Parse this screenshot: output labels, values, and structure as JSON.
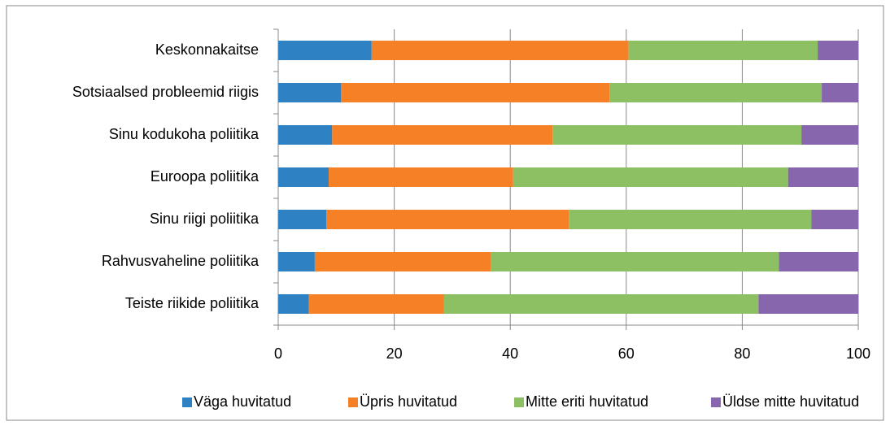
{
  "chart_data": {
    "type": "stacked-barh",
    "categories": [
      "Keskonnakaitse",
      "Sotsiaalsed probleemid riigis",
      "Sinu kodukoha poliitika",
      "Euroopa poliitika",
      "Sinu riigi poliitika",
      "Rahvusvaheline poliitika",
      "Teiste riikide poliitika"
    ],
    "series": [
      {
        "name": "Väga huvitatud",
        "color": "#2e82c4",
        "values": [
          16.1,
          10.8,
          9.3,
          8.7,
          8.3,
          6.3,
          5.3
        ]
      },
      {
        "name": "Üpris huvitatud",
        "color": "#f58025",
        "values": [
          44.3,
          46.3,
          38.0,
          31.8,
          41.8,
          30.4,
          23.3
        ]
      },
      {
        "name": "Mitte eriti huvitatud",
        "color": "#8cc063",
        "values": [
          32.6,
          36.6,
          42.9,
          47.4,
          41.8,
          49.6,
          54.2
        ]
      },
      {
        "name": "Üldse mitte huvitatud",
        "color": "#8766ad",
        "values": [
          7.0,
          6.3,
          9.8,
          12.1,
          8.1,
          13.7,
          17.2
        ]
      }
    ],
    "xlim": [
      0,
      100
    ],
    "xticks": [
      0,
      20,
      40,
      60,
      80,
      100
    ],
    "grid": true,
    "legend": "bottom"
  }
}
